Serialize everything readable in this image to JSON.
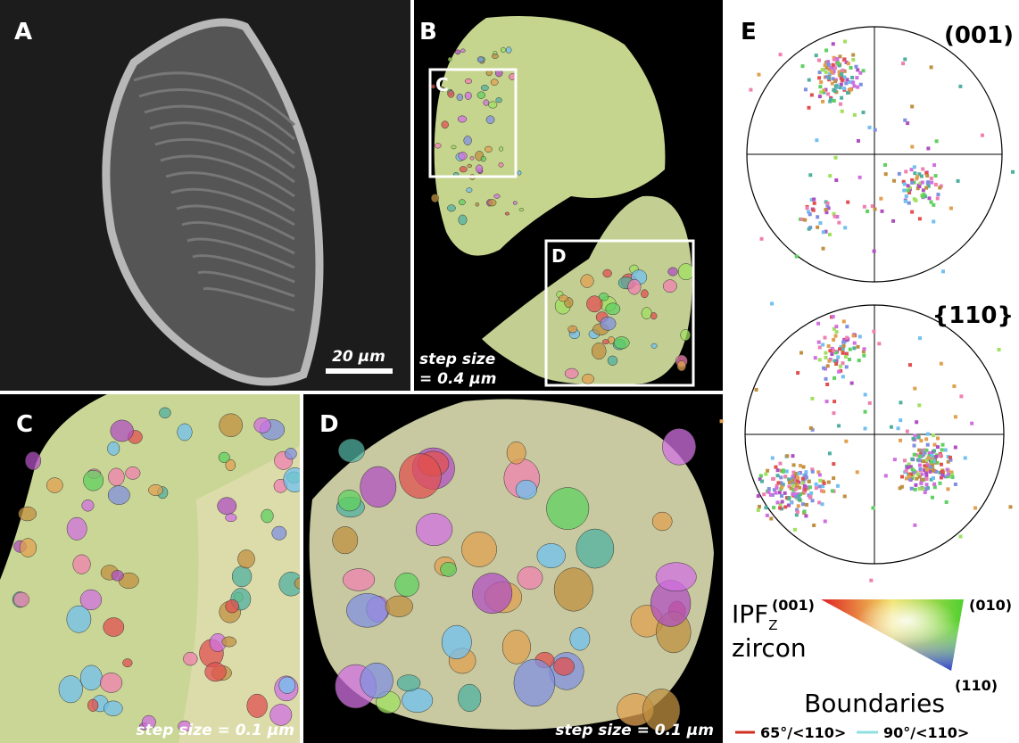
{
  "panels": {
    "a": {
      "label": "A",
      "scale_bar": "20 µm"
    },
    "b": {
      "label": "B",
      "inset_c": "C",
      "inset_d": "D",
      "step_size": [
        "step size",
        "= 0.4 µm"
      ]
    },
    "c": {
      "label": "C",
      "step_size": "step size = 0.1 µm"
    },
    "d": {
      "label": "D",
      "step_size": "step size = 0.1 µm"
    },
    "e": {
      "label": "E",
      "pole_figures": [
        "(001)",
        "{110}"
      ],
      "legend": {
        "ipf": "IPF",
        "ipf_sub": "Z",
        "mineral": "zircon",
        "corners": [
          "(001)",
          "(010)",
          "(110)"
        ],
        "boundaries_title": "Boundaries",
        "boundaries": [
          "65°/<110>",
          "90°/<110>"
        ]
      }
    }
  }
}
